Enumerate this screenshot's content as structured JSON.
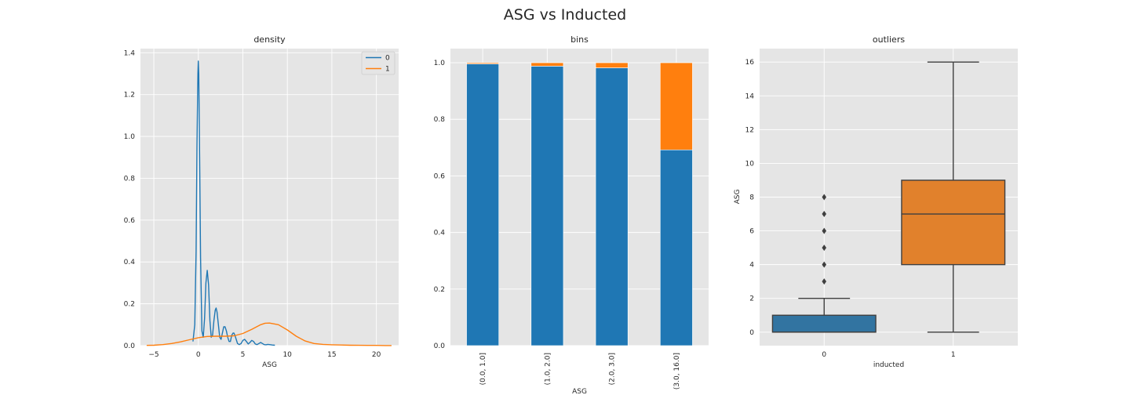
{
  "figure": {
    "title": "ASG vs Inducted"
  },
  "colors": {
    "series0": "#1f77b4",
    "series1": "#ff7f0e",
    "box0": "#3274a1",
    "box1": "#e1812c",
    "box_line": "#3f3f3f",
    "panel_bg": "#e5e5e5"
  },
  "chart_data": [
    {
      "type": "line",
      "title": "density",
      "xlabel": "ASG",
      "ylabel": "",
      "xlim": [
        -6.5,
        22.5
      ],
      "ylim": [
        0,
        1.42
      ],
      "xticks": [
        -5,
        0,
        5,
        10,
        15,
        20
      ],
      "xtick_labels": [
        "−5",
        "0",
        "5",
        "10",
        "15",
        "20"
      ],
      "yticks": [
        0,
        0.2,
        0.4,
        0.6,
        0.8,
        1.0,
        1.2,
        1.4
      ],
      "ytick_labels": [
        "0.0",
        "0.2",
        "0.4",
        "0.6",
        "0.8",
        "1.0",
        "1.2",
        "1.4"
      ],
      "legend": {
        "placement": "top-right",
        "entries": [
          "0",
          "1"
        ]
      },
      "grid": true,
      "series": [
        {
          "name": "0",
          "x": [
            -0.6,
            -0.4,
            -0.25,
            -0.15,
            -0.05,
            0,
            0.05,
            0.15,
            0.25,
            0.4,
            0.55,
            0.7,
            0.85,
            1,
            1.15,
            1.3,
            1.45,
            1.6,
            1.75,
            1.9,
            2,
            2.1,
            2.25,
            2.4,
            2.55,
            2.7,
            2.85,
            3,
            3.15,
            3.3,
            3.45,
            3.6,
            3.75,
            3.9,
            4,
            4.1,
            4.25,
            4.4,
            4.6,
            4.8,
            5,
            5.2,
            5.4,
            5.6,
            5.8,
            6,
            6.2,
            6.4,
            6.6,
            6.8,
            7,
            7.2,
            7.4,
            7.6,
            7.8,
            8,
            8.3,
            8.6
          ],
          "y": [
            0.02,
            0.1,
            0.45,
            0.95,
            1.3,
            1.36,
            1.3,
            0.9,
            0.42,
            0.07,
            0.04,
            0.13,
            0.3,
            0.36,
            0.29,
            0.12,
            0.04,
            0.05,
            0.12,
            0.17,
            0.18,
            0.16,
            0.1,
            0.04,
            0.03,
            0.06,
            0.09,
            0.09,
            0.07,
            0.04,
            0.02,
            0.02,
            0.05,
            0.06,
            0.06,
            0.05,
            0.03,
            0.01,
            0.005,
            0.01,
            0.025,
            0.03,
            0.02,
            0.008,
            0.015,
            0.025,
            0.02,
            0.008,
            0.005,
            0.01,
            0.015,
            0.01,
            0.005,
            0.004,
            0.006,
            0.005,
            0.003,
            0.002
          ]
        },
        {
          "name": "1",
          "x": [
            -5.8,
            -5,
            -4,
            -3,
            -2,
            -1,
            0,
            1,
            2,
            3,
            4,
            5,
            6,
            7,
            7.5,
            8,
            9,
            10,
            11,
            12,
            13,
            14,
            15,
            16,
            17,
            18,
            19,
            20,
            21,
            21.7
          ],
          "y": [
            0.001,
            0.002,
            0.005,
            0.01,
            0.018,
            0.028,
            0.038,
            0.044,
            0.045,
            0.045,
            0.047,
            0.058,
            0.078,
            0.1,
            0.107,
            0.108,
            0.1,
            0.075,
            0.045,
            0.022,
            0.01,
            0.006,
            0.004,
            0.003,
            0.002,
            0.0015,
            0.001,
            0.001,
            0.0005,
            0.0003
          ]
        }
      ]
    },
    {
      "type": "bar",
      "title": "bins",
      "xlabel": "ASG",
      "ylabel": "",
      "stacked": true,
      "ylim": [
        0,
        1.05
      ],
      "yticks": [
        0,
        0.2,
        0.4,
        0.6,
        0.8,
        1.0
      ],
      "ytick_labels": [
        "0.0",
        "0.2",
        "0.4",
        "0.6",
        "0.8",
        "1.0"
      ],
      "categories": [
        "(0.0, 1.0]",
        "(1.0, 2.0]",
        "(2.0, 3.0]",
        "(3.0, 16.0]"
      ],
      "grid": true,
      "series": [
        {
          "values": [
            0.996,
            0.988,
            0.982,
            0.692
          ]
        },
        {
          "values": [
            0.004,
            0.012,
            0.018,
            0.308
          ]
        }
      ]
    },
    {
      "type": "box",
      "title": "outliers",
      "xlabel": "inducted",
      "ylabel": "ASG",
      "ylim": [
        -0.8,
        16.8
      ],
      "yticks": [
        0,
        2,
        4,
        6,
        8,
        10,
        12,
        14,
        16
      ],
      "ytick_labels": [
        "0",
        "2",
        "4",
        "6",
        "8",
        "10",
        "12",
        "14",
        "16"
      ],
      "categories": [
        "0",
        "1"
      ],
      "grid": true,
      "boxes": [
        {
          "category": "0",
          "whisker_low": 0,
          "q1": 0,
          "median": 0,
          "q3": 1,
          "whisker_high": 2,
          "outliers": [
            3,
            4,
            5,
            6,
            7,
            8
          ]
        },
        {
          "category": "1",
          "whisker_low": 0,
          "q1": 4,
          "median": 7,
          "q3": 9,
          "whisker_high": 16,
          "outliers": []
        }
      ]
    }
  ]
}
